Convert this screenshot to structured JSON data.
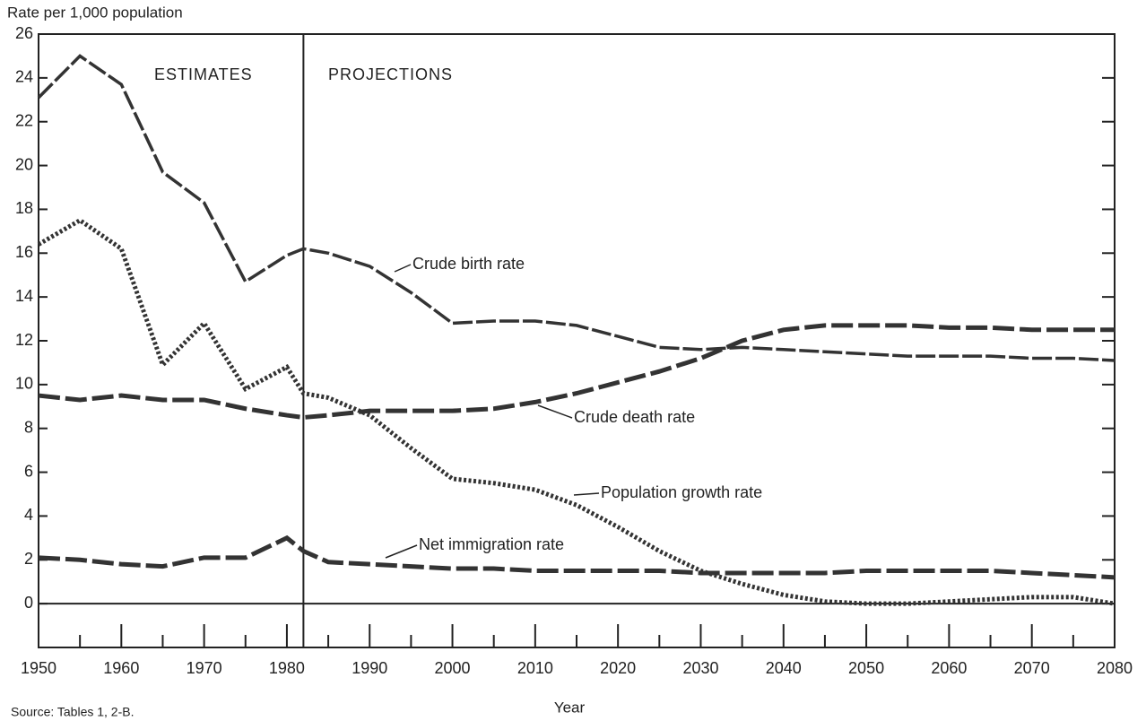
{
  "chart_data": {
    "type": "line",
    "y_axis_label": "Rate per 1,000 population",
    "x_axis_label": "Year",
    "source": "Source: Tables 1, 2-B.",
    "annotations": [
      "ESTIMATES",
      "PROJECTIONS"
    ],
    "divider_x": 1982,
    "x": [
      1950,
      1955,
      1960,
      1965,
      1970,
      1975,
      1980,
      1982,
      1985,
      1990,
      1995,
      2000,
      2005,
      2010,
      2015,
      2020,
      2025,
      2030,
      2035,
      2040,
      2045,
      2050,
      2055,
      2060,
      2065,
      2070,
      2075,
      2080
    ],
    "series": [
      {
        "name": "Crude birth rate",
        "color": "#333333",
        "style": "dash-long-thin",
        "values": [
          23.1,
          25.0,
          23.7,
          19.7,
          18.3,
          14.7,
          15.9,
          16.2,
          16.0,
          15.4,
          14.2,
          12.8,
          12.9,
          12.9,
          12.7,
          12.2,
          11.7,
          11.6,
          11.7,
          11.6,
          11.5,
          11.4,
          11.3,
          11.3,
          11.3,
          11.2,
          11.2,
          11.1
        ]
      },
      {
        "name": "Crude death rate",
        "color": "#333333",
        "style": "dash-long",
        "values": [
          9.5,
          9.3,
          9.5,
          9.3,
          9.3,
          8.9,
          8.6,
          8.5,
          8.6,
          8.8,
          8.8,
          8.8,
          8.9,
          9.2,
          9.6,
          10.1,
          10.6,
          11.2,
          12.0,
          12.5,
          12.7,
          12.7,
          12.7,
          12.6,
          12.6,
          12.5,
          12.5,
          12.5
        ]
      },
      {
        "name": "Population growth rate",
        "color": "#333333",
        "style": "dotted",
        "values": [
          16.4,
          17.5,
          16.2,
          10.9,
          12.8,
          9.8,
          10.8,
          9.6,
          9.4,
          8.6,
          7.1,
          5.7,
          5.5,
          5.2,
          4.5,
          3.5,
          2.4,
          1.5,
          0.9,
          0.4,
          0.1,
          0.0,
          0.0,
          0.1,
          0.2,
          0.3,
          0.3,
          0.0
        ]
      },
      {
        "name": "Net immigration rate",
        "color": "#333333",
        "style": "dash-long",
        "values": [
          2.1,
          2.0,
          1.8,
          1.7,
          2.1,
          2.1,
          3.0,
          2.4,
          1.9,
          1.8,
          1.7,
          1.6,
          1.6,
          1.5,
          1.5,
          1.5,
          1.5,
          1.4,
          1.4,
          1.4,
          1.4,
          1.5,
          1.5,
          1.5,
          1.5,
          1.4,
          1.3,
          1.2
        ]
      }
    ],
    "xlim": [
      1950,
      2080
    ],
    "xticks": [
      1950,
      1960,
      1970,
      1980,
      1990,
      2000,
      2010,
      2020,
      2030,
      2040,
      2050,
      2060,
      2070,
      2080
    ],
    "ylim": [
      -2,
      26
    ],
    "yticks": [
      0,
      2,
      4,
      6,
      8,
      10,
      12,
      14,
      16,
      18,
      20,
      22,
      24,
      26
    ]
  }
}
